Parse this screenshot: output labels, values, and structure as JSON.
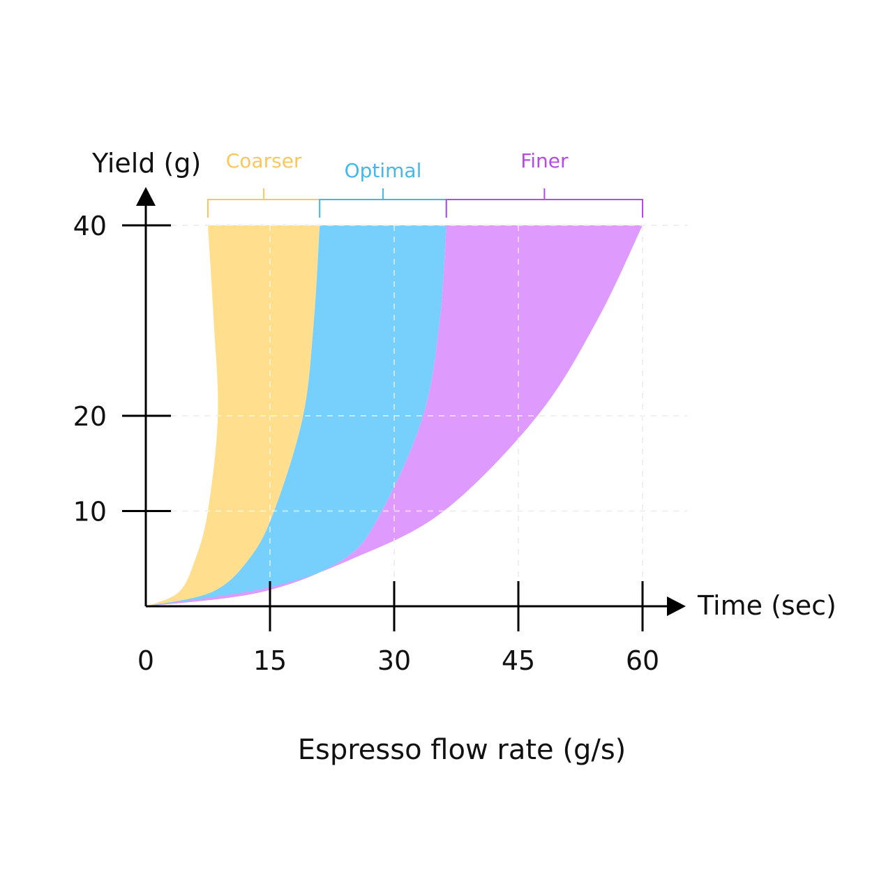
{
  "chart_data": {
    "type": "area",
    "title": "",
    "caption": "Espresso flow rate (g/s)",
    "xlabel": "Time (sec)",
    "ylabel": "Yield (g)",
    "xlim": [
      0,
      60
    ],
    "ylim": [
      0,
      40
    ],
    "x_ticks": [
      "0",
      "15",
      "30",
      "45",
      "60"
    ],
    "y_ticks": [
      "10",
      "20",
      "40"
    ],
    "grid": true,
    "y_tick_values": [
      10,
      20,
      40
    ],
    "x_tick_values": [
      0,
      15,
      30,
      45,
      60
    ],
    "bands": [
      {
        "name": "Coarser",
        "color": "#ffdf8e",
        "left_edge": [
          [
            0,
            0
          ],
          [
            4,
            1.5
          ],
          [
            6,
            5
          ],
          [
            7.5,
            10
          ],
          [
            8.7,
            20
          ],
          [
            8.2,
            30
          ],
          [
            7.5,
            40
          ]
        ],
        "right_edge": [
          [
            0,
            0
          ],
          [
            8,
            1.5
          ],
          [
            12.5,
            5
          ],
          [
            15.5,
            10
          ],
          [
            19,
            20
          ],
          [
            20.3,
            30
          ],
          [
            21,
            40
          ]
        ]
      },
      {
        "name": "Optimal",
        "color": "#76d0fb",
        "left_edge": [
          [
            0,
            0
          ],
          [
            8,
            1.5
          ],
          [
            12.5,
            5
          ],
          [
            15.5,
            10
          ],
          [
            19,
            20
          ],
          [
            20.3,
            30
          ],
          [
            21,
            40
          ]
        ],
        "right_edge": [
          [
            0,
            0
          ],
          [
            14,
            1.5
          ],
          [
            24,
            5
          ],
          [
            28.5,
            10
          ],
          [
            33.5,
            20
          ],
          [
            35.5,
            30
          ],
          [
            36.3,
            40
          ]
        ]
      },
      {
        "name": "Finer",
        "color": "#df9afd",
        "left_edge": [
          [
            0,
            0
          ],
          [
            14,
            1.5
          ],
          [
            24,
            5
          ],
          [
            28.5,
            10
          ],
          [
            33.5,
            20
          ],
          [
            35.5,
            30
          ],
          [
            36.3,
            40
          ]
        ],
        "right_edge": [
          [
            0,
            0
          ],
          [
            15,
            2
          ],
          [
            25,
            5
          ],
          [
            36,
            10
          ],
          [
            47.3,
            20
          ],
          [
            54.5,
            30
          ],
          [
            60,
            40
          ]
        ]
      }
    ],
    "band_brackets": [
      {
        "name": "Coarser",
        "from": 7.5,
        "to": 21,
        "color": "#f8c85c"
      },
      {
        "name": "Optimal",
        "from": 21,
        "to": 36.3,
        "color": "#45b8ea"
      },
      {
        "name": "Finer",
        "from": 36.3,
        "to": 60,
        "color": "#b84be6"
      }
    ]
  }
}
